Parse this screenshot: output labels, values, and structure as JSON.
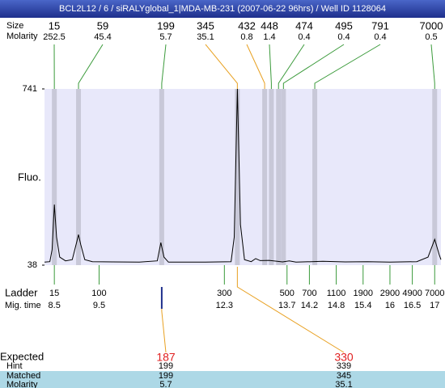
{
  "title": "BCL2L12 / 6 / siRALYglobal_1|MDA-MB-231 (2007-06-22 96hrs) / Well ID 1128064",
  "chart_data": {
    "type": "line",
    "ylabel": "Fluo.",
    "color": "#000000",
    "xlim": [
      8.28,
      17.14
    ],
    "ylim": [
      38,
      741
    ],
    "yticks": [
      741,
      38
    ],
    "x": [
      8.28,
      8.4,
      8.45,
      8.5,
      8.55,
      8.62,
      8.75,
      8.9,
      9.0,
      9.04,
      9.09,
      9.18,
      9.35,
      9.8,
      10.4,
      10.8,
      10.88,
      10.95,
      11.05,
      11.8,
      12.45,
      12.52,
      12.59,
      12.66,
      12.75,
      12.9,
      13.0,
      13.1,
      13.3,
      13.6,
      13.75,
      13.9,
      14.5,
      15.0,
      15.5,
      16.0,
      16.6,
      16.85,
      17.0,
      17.1,
      17.14
    ],
    "values": [
      50,
      52,
      100,
      280,
      150,
      70,
      55,
      60,
      130,
      160,
      120,
      60,
      52,
      51,
      50,
      55,
      128,
      70,
      50,
      50,
      52,
      150,
      741,
      200,
      60,
      52,
      64,
      56,
      57,
      51,
      55,
      50,
      53,
      51,
      52,
      50,
      52,
      70,
      141,
      80,
      60
    ]
  },
  "peak_labels": {
    "size": "Size",
    "molarity": "Molarity"
  },
  "peaks": [
    {
      "size": 15,
      "molarity": 252.5,
      "time": 8.5,
      "color": "#3a9a3a"
    },
    {
      "size": 59,
      "molarity": 45.4,
      "time": 9.04,
      "color": "#3a9a3a"
    },
    {
      "size": 199,
      "molarity": 5.7,
      "time": 10.9,
      "color": "#3a9a3a"
    },
    {
      "size": 345,
      "molarity": 35.1,
      "time": 12.59,
      "color": "#e8a020"
    },
    {
      "size": 432,
      "molarity": 0.8,
      "time": 13.2,
      "color": "#e8a020"
    },
    {
      "size": 448,
      "molarity": 1.4,
      "time": 13.35,
      "color": "#3a9a3a"
    },
    {
      "size": 474,
      "molarity": 0.4,
      "time": 13.51,
      "color": "#3a9a3a"
    },
    {
      "size": 495,
      "molarity": 0.4,
      "time": 13.62,
      "color": "#3a9a3a"
    },
    {
      "size": 791,
      "molarity": 0.4,
      "time": 14.32,
      "color": "#3a9a3a"
    },
    {
      "size": 7000,
      "molarity": 0.5,
      "time": 17.0,
      "color": "#3a9a3a"
    }
  ],
  "ladder_labels": {
    "size": "Ladder",
    "time": "Mig. time"
  },
  "ladder": [
    {
      "size": 15,
      "time": 8.5
    },
    {
      "size": 100,
      "time": 9.5
    },
    {
      "size": 300,
      "time": 12.3
    },
    {
      "size": 500,
      "time": 13.7
    },
    {
      "size": 700,
      "time": 14.2
    },
    {
      "size": 1100,
      "time": 14.8
    },
    {
      "size": 1900,
      "time": 15.4
    },
    {
      "size": 2900,
      "time": 16
    },
    {
      "size": 4900,
      "time": 16.5
    },
    {
      "size": 7000,
      "time": 17
    }
  ],
  "expected_labels": {
    "expected": "Expected",
    "hint": "Hint",
    "matched": "Matched",
    "molarity": "Molarity"
  },
  "expected": [
    {
      "expected": 187,
      "hint": 199,
      "matched": 199,
      "molarity": 5.7
    },
    {
      "expected": 330,
      "hint": 339,
      "matched": 345,
      "molarity": 35.1
    }
  ]
}
